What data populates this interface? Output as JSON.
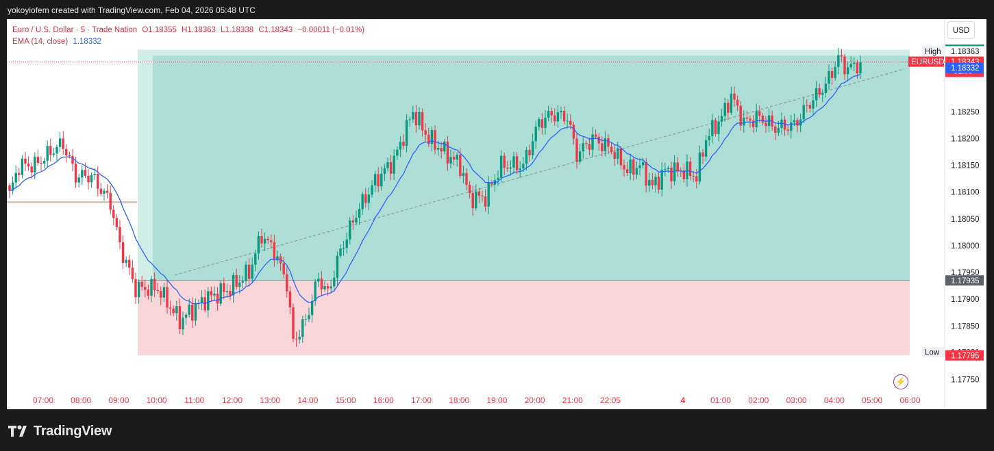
{
  "header": {
    "credit": "yokoyiofem created with TradingView.com, Feb 04, 2026 05:48 UTC"
  },
  "legend": {
    "symbol": "Euro / U.S. Dollar · 5 · Trade Nation",
    "open": "O1.18355",
    "high": "H1.18363",
    "low": "L1.18338",
    "close": "C1.18343",
    "change": "−0.00011 (−0.01%)",
    "ema": "EMA (14, close)",
    "ema_value": "1.18332"
  },
  "currency_button": "USD",
  "footer": {
    "brand": "TradingView"
  },
  "colors": {
    "up": "#089981",
    "down": "#f23645",
    "ema": "#2962ff",
    "profit_zone": "#a8dcd3",
    "loss_zone": "#f9d6d9",
    "label_dark": "#5d606b"
  },
  "icons": [
    "lightning-icon",
    "tradingview-logo-icon"
  ],
  "chart_data": {
    "type": "candlestick",
    "title": "Euro / U.S. Dollar · 5 · Trade Nation",
    "x_tick_labels": [
      "07:00",
      "08:00",
      "09:00",
      "10:00",
      "11:00",
      "12:00",
      "13:00",
      "14:00",
      "15:00",
      "16:00",
      "17:00",
      "18:00",
      "19:00",
      "20:00",
      "21:00",
      "22:05",
      "4",
      "01:00",
      "02:00",
      "03:00",
      "04:00",
      "05:00",
      "06:00"
    ],
    "y_tick_labels": [
      "1.18250",
      "1.18200",
      "1.18150",
      "1.18100",
      "1.18050",
      "1.18000",
      "1.17950",
      "1.17900",
      "1.17850",
      "1.17750"
    ],
    "y_range": [
      1.17734,
      1.18377
    ],
    "price_labels": [
      {
        "text": "1.18366",
        "value": 1.18366,
        "kind": "target"
      },
      {
        "text": "1.18363",
        "value": 1.18363,
        "kind": "high",
        "caption": "High"
      },
      {
        "text": "1.18343",
        "value": 1.18343,
        "kind": "last",
        "caption": "EURUSD",
        "subtext": "01:03"
      },
      {
        "text": "1.18332",
        "value": 1.18332,
        "kind": "ema"
      },
      {
        "text": "1.17935",
        "value": 1.17935,
        "kind": "entry"
      },
      {
        "text": "1.17801",
        "value": 1.17801,
        "kind": "low",
        "caption": "Low"
      },
      {
        "text": "1.17795",
        "value": 1.17795,
        "kind": "stop"
      }
    ],
    "position": {
      "type": "long",
      "entry": 1.17935,
      "target": 1.18366,
      "stop": 1.17795,
      "start_time": "09:30",
      "end_time": "06:00"
    },
    "reference_line": {
      "value": 1.18081,
      "time_start": "06:30",
      "time_end": "09:30"
    },
    "ema_series": {
      "name": "EMA (14, close)",
      "last": 1.18332
    },
    "anchors": [
      {
        "t": 0,
        "p": 1.18095
      },
      {
        "t": 3,
        "p": 1.1815
      },
      {
        "t": 8,
        "p": 1.1815
      },
      {
        "t": 14,
        "p": 1.1818
      },
      {
        "t": 17,
        "p": 1.1819
      },
      {
        "t": 21,
        "p": 1.1813
      },
      {
        "t": 26,
        "p": 1.1813
      },
      {
        "t": 32,
        "p": 1.1808
      },
      {
        "t": 35,
        "p": 1.18
      },
      {
        "t": 40,
        "p": 1.1792
      },
      {
        "t": 47,
        "p": 1.1792
      },
      {
        "t": 54,
        "p": 1.1786
      },
      {
        "t": 62,
        "p": 1.179
      },
      {
        "t": 70,
        "p": 1.1792
      },
      {
        "t": 76,
        "p": 1.1795
      },
      {
        "t": 80,
        "p": 1.1802
      },
      {
        "t": 84,
        "p": 1.1799
      },
      {
        "t": 88,
        "p": 1.1793
      },
      {
        "t": 90,
        "p": 1.1782
      },
      {
        "t": 94,
        "p": 1.1786
      },
      {
        "t": 98,
        "p": 1.1794
      },
      {
        "t": 101,
        "p": 1.1791
      },
      {
        "t": 105,
        "p": 1.1799
      },
      {
        "t": 110,
        "p": 1.1806
      },
      {
        "t": 116,
        "p": 1.1812
      },
      {
        "t": 122,
        "p": 1.1816
      },
      {
        "t": 128,
        "p": 1.1825
      },
      {
        "t": 133,
        "p": 1.182
      },
      {
        "t": 137,
        "p": 1.1818
      },
      {
        "t": 143,
        "p": 1.1815
      },
      {
        "t": 146,
        "p": 1.1809
      },
      {
        "t": 151,
        "p": 1.1809
      },
      {
        "t": 156,
        "p": 1.1815
      },
      {
        "t": 163,
        "p": 1.1815
      },
      {
        "t": 168,
        "p": 1.1823
      },
      {
        "t": 172,
        "p": 1.18245
      },
      {
        "t": 177,
        "p": 1.1824
      },
      {
        "t": 180,
        "p": 1.1817
      },
      {
        "t": 185,
        "p": 1.182
      },
      {
        "t": 191,
        "p": 1.1818
      },
      {
        "t": 196,
        "p": 1.1814
      },
      {
        "t": 200,
        "p": 1.1815
      },
      {
        "t": 204,
        "p": 1.1811
      },
      {
        "t": 208,
        "p": 1.1814
      },
      {
        "t": 214,
        "p": 1.1814
      },
      {
        "t": 218,
        "p": 1.1813
      },
      {
        "t": 221,
        "p": 1.182
      },
      {
        "t": 226,
        "p": 1.1824
      },
      {
        "t": 229,
        "p": 1.1828
      },
      {
        "t": 233,
        "p": 1.1823
      },
      {
        "t": 238,
        "p": 1.1824
      },
      {
        "t": 243,
        "p": 1.1822
      },
      {
        "t": 249,
        "p": 1.18225
      },
      {
        "t": 253,
        "p": 1.1826
      },
      {
        "t": 259,
        "p": 1.183
      },
      {
        "t": 263,
        "p": 1.1835
      },
      {
        "t": 266,
        "p": 1.1833
      },
      {
        "t": 270,
        "p": 1.18343
      }
    ]
  }
}
